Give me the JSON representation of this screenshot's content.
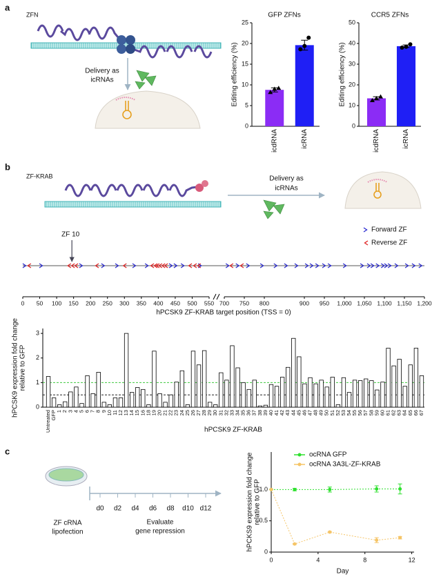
{
  "panels": [
    "a",
    "b",
    "c"
  ],
  "diagram_a": {
    "label": "ZFN",
    "delivery": [
      "Delivery as",
      "icRNAs"
    ]
  },
  "diagram_b": {
    "label": "ZF-KRAB",
    "delivery": [
      "Delivery as",
      "icRNAs"
    ]
  },
  "timeline": {
    "start": [
      "ZF cRNA",
      "lipofection"
    ],
    "days": [
      "d0",
      "d2",
      "d4",
      "d6",
      "d8",
      "d10",
      "d12"
    ],
    "end": [
      "Evaluate",
      "gene repression"
    ]
  },
  "chart_data": [
    {
      "type": "bar",
      "title": "GFP ZFNs",
      "y_label": [
        "Editing efficiency (%)"
      ],
      "categories": [
        "icdRNA",
        "icRNA"
      ],
      "values": [
        8.8,
        19.6
      ],
      "errors": [
        0.5,
        1.2
      ],
      "colors": [
        "#8b2cf5",
        "#1f1ff5"
      ],
      "markers": [
        "triangle",
        "circle"
      ],
      "points": [
        [
          8.2,
          9.0,
          9.2
        ],
        [
          18.6,
          19.4,
          21.4
        ]
      ],
      "ylim": [
        0,
        25
      ],
      "yticks": [
        0,
        5,
        10,
        15,
        20,
        25
      ]
    },
    {
      "type": "bar",
      "title": "CCR5 ZFNs",
      "y_label": [
        "Editing efficiency (%)"
      ],
      "categories": [
        "icdRNA",
        "icRNA"
      ],
      "values": [
        13.5,
        38.7
      ],
      "errors": [
        0.8,
        0.6
      ],
      "colors": [
        "#8b2cf5",
        "#1f1ff5"
      ],
      "markers": [
        "triangle",
        "circle"
      ],
      "points": [
        [
          12.5,
          13.5,
          14.3
        ],
        [
          38.0,
          38.4,
          39.6
        ]
      ],
      "ylim": [
        0,
        50
      ],
      "yticks": [
        0,
        10,
        20,
        30,
        40,
        50
      ]
    },
    {
      "type": "track",
      "x_label": "hPCSK9 ZF-KRAB target position (TSS = 0)",
      "segments": [
        {
          "xlim": [
            0,
            550
          ],
          "xticks": [
            0,
            50,
            100,
            150,
            200,
            250,
            300,
            350,
            400,
            450,
            500,
            550
          ]
        },
        {
          "xlim": [
            700,
            1200
          ],
          "xticks": [
            700,
            750,
            800,
            900,
            950,
            {
              "value": 1000,
              "label": "1,000"
            },
            {
              "value": 1050,
              "label": "1,050"
            },
            {
              "value": 1100,
              "label": "1,100"
            },
            {
              "value": 1150,
              "label": "1,150"
            },
            {
              "value": 1200,
              "label": "1,200"
            }
          ]
        }
      ],
      "series": [
        {
          "name": "Forward ZF",
          "color": "#2a2ad0",
          "direction": "forward",
          "values": [
            6,
            55,
            173,
            238,
            279,
            330,
            367,
            438,
            452,
            473,
            524,
            709,
            734,
            760,
            795,
            829,
            855,
            881,
            907,
            919,
            933,
            950,
            964,
            1002,
            1045,
            1062,
            1071,
            1084,
            1097,
            1105,
            1114,
            1131,
            1157,
            1174,
            1191
          ]
        },
        {
          "name": "Reverse ZF",
          "color": "#e02424",
          "direction": "reverse",
          "values": [
            18,
            136,
            147,
            157,
            218,
            300,
            381,
            391,
            397,
            405,
            414,
            422,
            493,
            507,
            519,
            717,
            743
          ]
        }
      ],
      "annotation": {
        "text": "ZF 10",
        "value": 145
      }
    },
    {
      "type": "bar",
      "x_label": "hPCSK9 ZF-KRAB",
      "y_label": [
        "hPCSK9 expression fold change",
        "relative to GFP"
      ],
      "categories": [
        "Untreated",
        "GFP",
        "1",
        "2",
        "3",
        "4",
        "5",
        "6",
        "7",
        "8",
        "9",
        "10",
        "11",
        "12",
        "13",
        "14",
        "15",
        "16",
        "18",
        "19",
        "20",
        "21",
        "22",
        "23",
        "24",
        "25",
        "26",
        "27",
        "28",
        "29",
        "30",
        "31",
        "32",
        "33",
        "34",
        "35",
        "36",
        "37",
        "38",
        "39",
        "40",
        "41",
        "42",
        "43",
        "44",
        "45",
        "46",
        "47",
        "48",
        "49",
        "50",
        "51",
        "52",
        "53",
        "54",
        "55",
        "56",
        "57",
        "58",
        "59",
        "60",
        "61",
        "62",
        "63",
        "64",
        "65",
        "66",
        "67"
      ],
      "values": [
        1.25,
        0.38,
        0.1,
        0.22,
        0.62,
        0.82,
        0.15,
        1.28,
        0.55,
        1.42,
        0.2,
        0.1,
        0.38,
        0.38,
        3.0,
        0.6,
        0.8,
        0.72,
        0.1,
        2.28,
        0.55,
        0.2,
        0.5,
        1.02,
        1.48,
        0.1,
        2.28,
        1.72,
        2.3,
        0.2,
        0.1,
        1.4,
        1.1,
        2.5,
        1.6,
        1.0,
        0.72,
        1.1,
        0.05,
        0.08,
        0.92,
        0.85,
        1.22,
        1.62,
        2.8,
        2.05,
        0.95,
        1.2,
        0.95,
        1.1,
        0.82,
        1.22,
        0.1,
        1.2,
        0.6,
        1.1,
        1.08,
        1.15,
        1.08,
        0.7,
        1.02,
        2.4,
        1.68,
        1.95,
        0.85,
        1.72,
        2.4,
        1.28
      ],
      "color": "#ffffff",
      "edge_color": "#000000",
      "ref_lines": [
        {
          "value": 1,
          "color": "#3cc83c"
        },
        {
          "value": 0.5,
          "color": "#000000"
        }
      ],
      "ylim": [
        0,
        3.2
      ],
      "yticks": [
        0,
        1,
        2,
        3
      ]
    },
    {
      "type": "line",
      "x_label": "Day",
      "y_label": [
        "hPCKS9 expression fold change",
        "relative to GFP"
      ],
      "x": [
        0,
        2,
        5,
        9,
        11
      ],
      "xlim": [
        0,
        12.2
      ],
      "xticks": [
        0,
        4,
        8,
        12
      ],
      "ylim": [
        0,
        1.6
      ],
      "yticks": [
        0,
        0.5,
        {
          "value": 1,
          "label": "1.0"
        }
      ],
      "series": [
        {
          "name": "ocRNA GFP",
          "color": "#2ee02e",
          "values": [
            1,
            1.0,
            1.0,
            1.01,
            1.01
          ],
          "errors": [
            0,
            0.02,
            0.04,
            0.05,
            0.08
          ]
        },
        {
          "name": "ocRNA 3A3L-ZF-KRAB",
          "color": "#f5c466",
          "values": [
            1,
            0.13,
            0.32,
            0.19,
            0.23
          ],
          "errors": [
            0,
            0.01,
            0.01,
            0.04,
            0.02
          ]
        }
      ]
    }
  ]
}
